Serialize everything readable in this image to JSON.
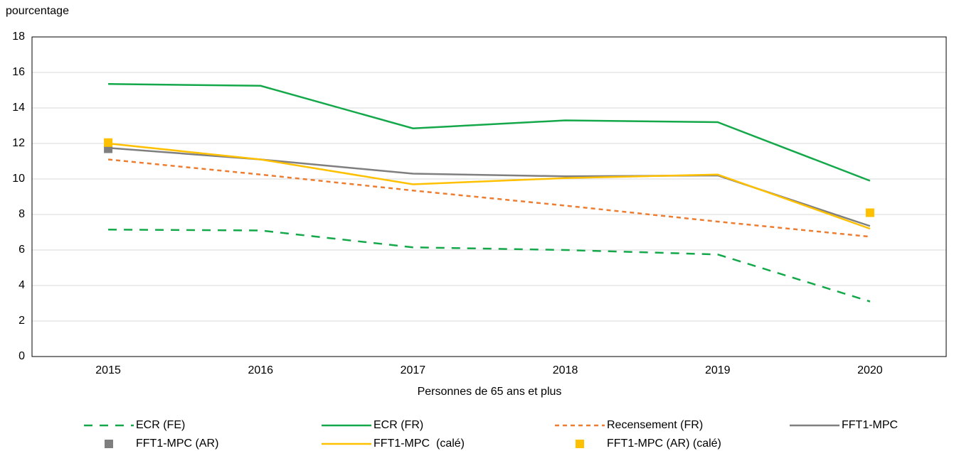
{
  "chart_data": {
    "type": "line",
    "ylabel": "pourcentage",
    "xlabel": "Personnes de 65 ans et plus",
    "categories": [
      "2015",
      "2016",
      "2017",
      "2018",
      "2019",
      "2020"
    ],
    "ylim": [
      0,
      18
    ],
    "yticks": [
      0,
      2,
      4,
      6,
      8,
      10,
      12,
      14,
      16,
      18
    ],
    "grid": true,
    "legend": "bottom",
    "series": [
      {
        "name": "ECR (FE)",
        "color": "#14a84a",
        "style": "dashed",
        "values": [
          7.15,
          7.1,
          6.15,
          6.0,
          5.75,
          3.1
        ]
      },
      {
        "name": "ECR (FR)",
        "color": "#14a84a",
        "style": "solid",
        "values": [
          15.35,
          15.25,
          12.85,
          13.3,
          13.2,
          9.9
        ]
      },
      {
        "name": "Recensement (FR)",
        "color": "#ed7d31",
        "style": "dotted",
        "values": [
          11.1,
          10.25,
          9.35,
          8.5,
          7.6,
          6.75
        ]
      },
      {
        "name": "FFT1-MPC",
        "color": "#7f7f7f",
        "style": "solid",
        "values": [
          11.75,
          11.1,
          10.3,
          10.15,
          10.2,
          7.35
        ]
      },
      {
        "name": "FFT1-MPC (AR)",
        "color": "#7f7f7f",
        "style": "marker",
        "values": [
          11.7,
          null,
          null,
          null,
          null,
          null
        ]
      },
      {
        "name": "FFT1-MPC  (calé)",
        "color": "#ffc000",
        "style": "solid",
        "values": [
          12.0,
          11.1,
          9.7,
          10.05,
          10.25,
          7.2
        ]
      },
      {
        "name": "FFT1-MPC (AR) (calé)",
        "color": "#ffc000",
        "style": "marker",
        "values": [
          12.05,
          null,
          null,
          null,
          null,
          8.1
        ]
      }
    ]
  }
}
